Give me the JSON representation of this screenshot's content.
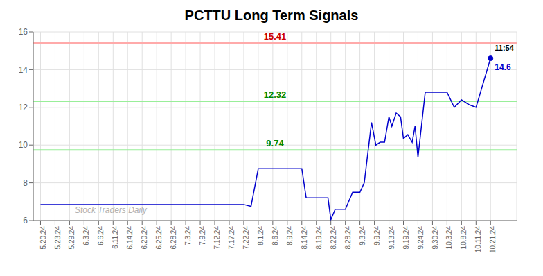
{
  "chart_data": {
    "type": "line",
    "title": "PCTTU Long Term Signals",
    "color": "#0000CC",
    "grid": true,
    "xlim": [
      -0.5,
      32.8
    ],
    "xticks": [
      {
        "value": 0,
        "label": "5.20.24"
      },
      {
        "value": 1,
        "label": "5.23.24"
      },
      {
        "value": 2,
        "label": "5.29.24"
      },
      {
        "value": 3,
        "label": "6.3.24"
      },
      {
        "value": 4,
        "label": "6.6.24"
      },
      {
        "value": 5,
        "label": "6.11.24"
      },
      {
        "value": 6,
        "label": "6.14.24"
      },
      {
        "value": 7,
        "label": "6.20.24"
      },
      {
        "value": 8,
        "label": "6.25.24"
      },
      {
        "value": 9,
        "label": "6.28.24"
      },
      {
        "value": 10,
        "label": "7.3.24"
      },
      {
        "value": 11,
        "label": "7.9.24"
      },
      {
        "value": 12,
        "label": "7.12.24"
      },
      {
        "value": 13,
        "label": "7.17.24"
      },
      {
        "value": 14,
        "label": "7.22.24"
      },
      {
        "value": 15,
        "label": "8.1.24"
      },
      {
        "value": 16,
        "label": "8.6.24"
      },
      {
        "value": 17,
        "label": "8.9.24"
      },
      {
        "value": 18,
        "label": "8.14.24"
      },
      {
        "value": 19,
        "label": "8.19.24"
      },
      {
        "value": 20,
        "label": "8.22.24"
      },
      {
        "value": 21,
        "label": "8.28.24"
      },
      {
        "value": 22,
        "label": "9.3.24"
      },
      {
        "value": 23,
        "label": "9.9.24"
      },
      {
        "value": 24,
        "label": "9.13.24"
      },
      {
        "value": 25,
        "label": "9.19.24"
      },
      {
        "value": 26,
        "label": "9.24.24"
      },
      {
        "value": 27,
        "label": "9.30.24"
      },
      {
        "value": 28,
        "label": "10.3.24"
      },
      {
        "value": 29,
        "label": "10.8.24"
      },
      {
        "value": 30,
        "label": "10.11.24"
      },
      {
        "value": 31,
        "label": "10.21.24"
      }
    ],
    "ylim": [
      6,
      16
    ],
    "yticks": [
      6,
      8,
      10,
      12,
      14,
      16
    ],
    "x": [
      0,
      14,
      14.5,
      15.0,
      18.0,
      18.3,
      19.0,
      19.8,
      20.0,
      20.3,
      21.0,
      21.5,
      22.0,
      22.3,
      22.8,
      23.1,
      23.4,
      23.7,
      24.0,
      24.2,
      24.5,
      24.8,
      25.0,
      25.3,
      25.6,
      25.8,
      26.0,
      26.5,
      27.0,
      28.0,
      28.5,
      29.0,
      29.5,
      30.0,
      31.0
    ],
    "values": [
      6.85,
      6.85,
      6.75,
      8.75,
      8.75,
      7.2,
      7.2,
      7.2,
      6.05,
      6.6,
      6.6,
      7.5,
      7.5,
      8.0,
      11.2,
      10.0,
      10.15,
      10.15,
      11.5,
      11.0,
      11.7,
      11.5,
      10.35,
      10.55,
      10.15,
      11.0,
      9.35,
      12.8,
      12.8,
      12.8,
      12.0,
      12.4,
      12.15,
      12.0,
      14.6
    ],
    "hlines": [
      {
        "y": 15.41,
        "label": "15.41",
        "color": "#ffaaaa",
        "label_color": "#cc0000"
      },
      {
        "y": 12.32,
        "label": "12.32",
        "color": "#99ee99",
        "label_color": "#008800"
      },
      {
        "y": 9.74,
        "label": "9.74",
        "color": "#99ee99",
        "label_color": "#008800"
      }
    ],
    "annotations": [
      {
        "text": "11:54",
        "color": "#000000"
      },
      {
        "text": "14.6",
        "color": "#0000CC"
      }
    ],
    "watermark": {
      "text": "Stock Traders Daily",
      "color": "#aaaaaa"
    }
  }
}
